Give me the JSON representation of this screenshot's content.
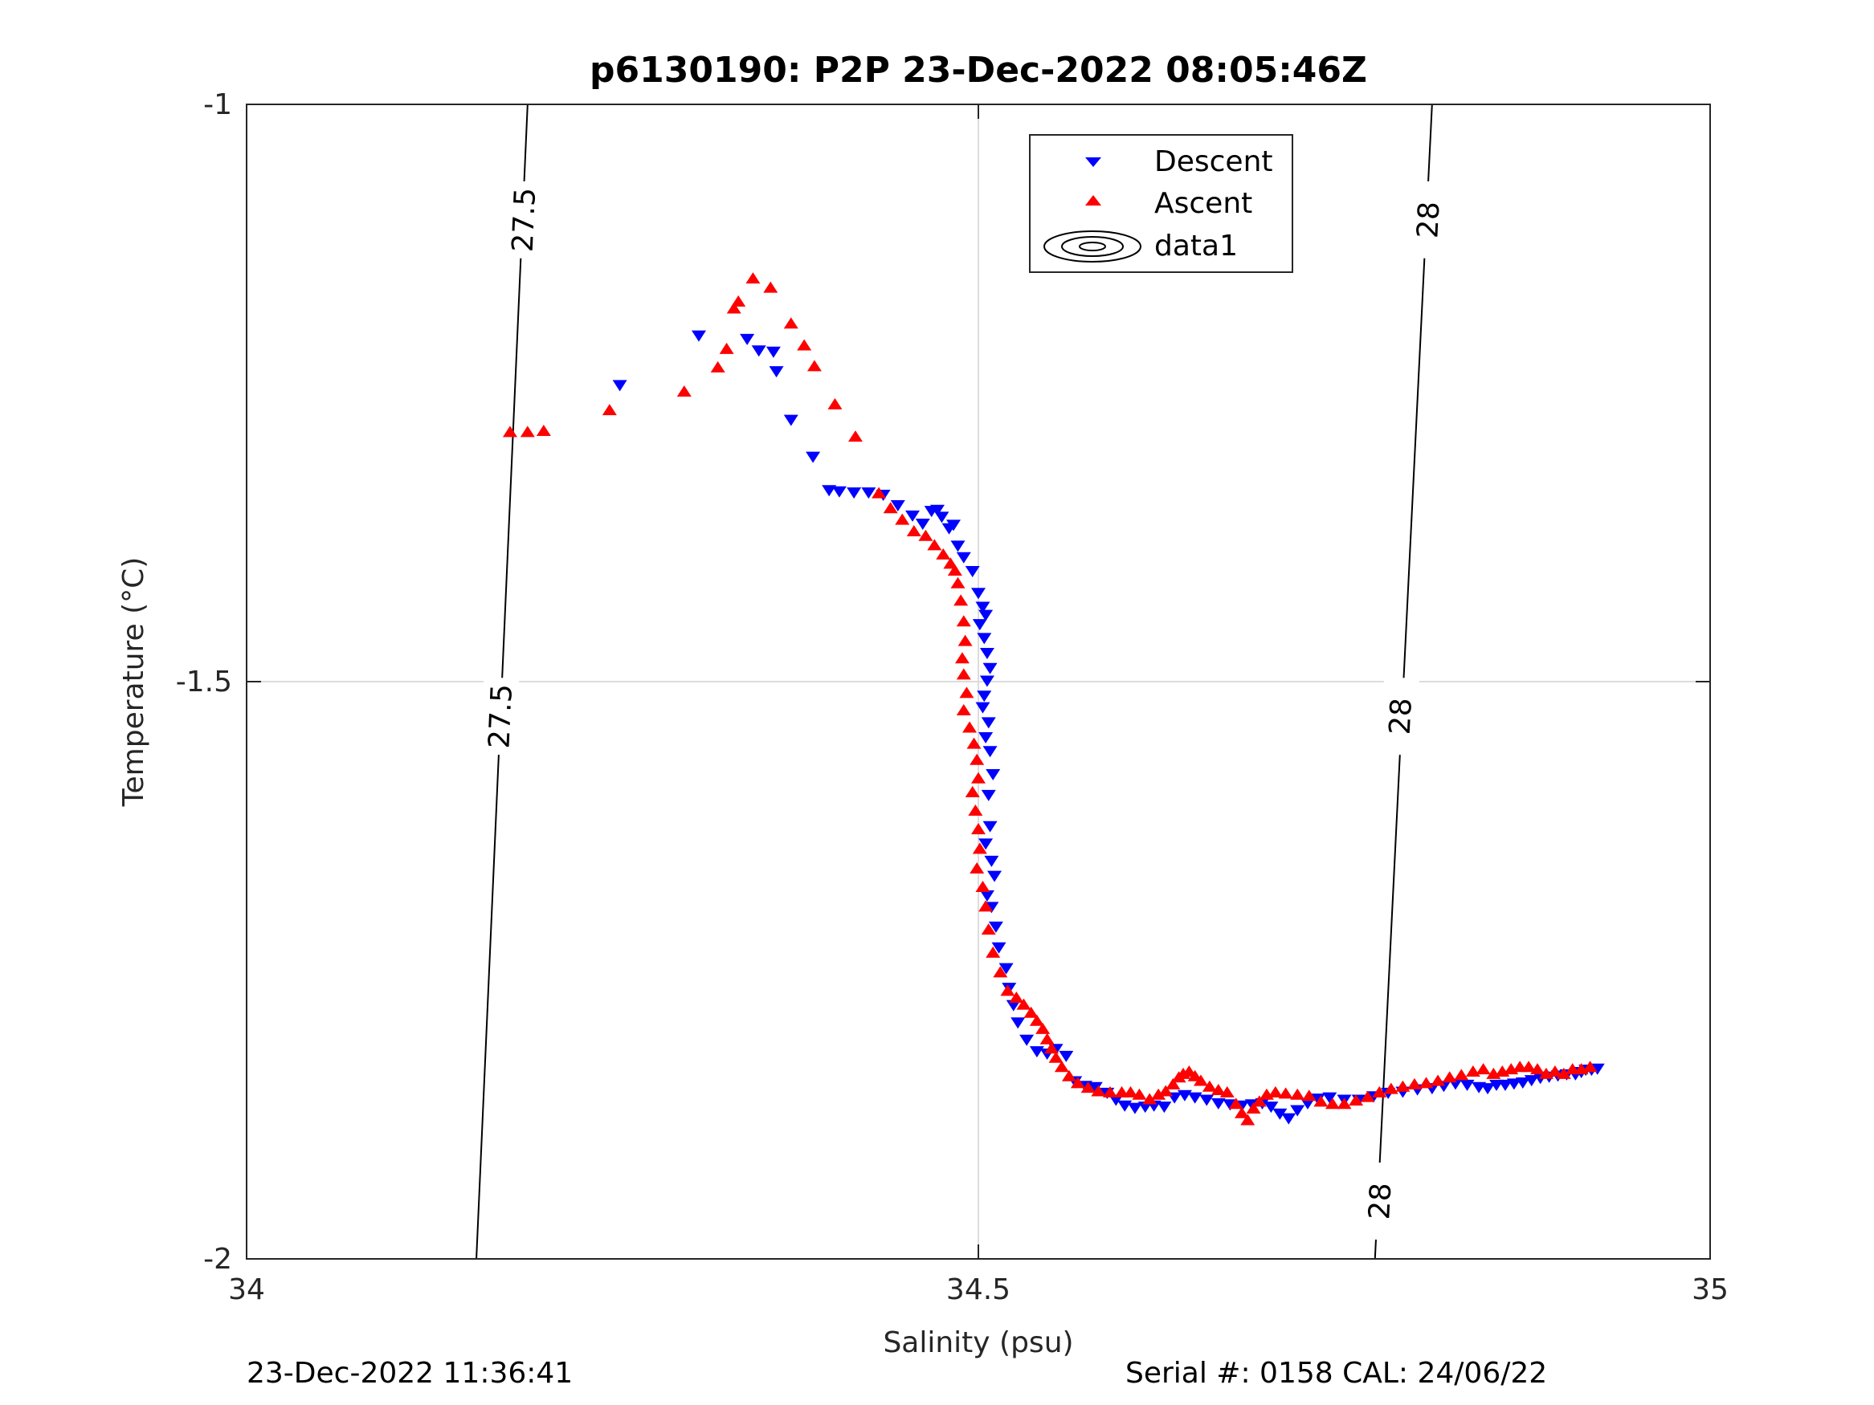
{
  "chart_data": {
    "type": "scatter",
    "title": "p6130190: P2P 23-Dec-2022 08:05:46Z",
    "xlabel": "Salinity (psu)",
    "ylabel": "Temperature (°C)",
    "xlim": [
      34,
      35
    ],
    "ylim": [
      -2,
      -1
    ],
    "xticks": [
      "34",
      "34.5",
      "35"
    ],
    "yticks": [
      "-2",
      "-1.5",
      "-1"
    ],
    "grid": true,
    "legend_position": "top-right",
    "legend": [
      "Descent",
      "Ascent",
      "data1"
    ],
    "series": [
      {
        "name": "Descent",
        "marker": "triangle-down",
        "color": "#0000ff",
        "points": [
          [
            34.255,
            -1.243
          ],
          [
            34.309,
            -1.2
          ],
          [
            34.342,
            -1.203
          ],
          [
            34.35,
            -1.213
          ],
          [
            34.36,
            -1.214
          ],
          [
            34.362,
            -1.231
          ],
          [
            34.372,
            -1.273
          ],
          [
            34.387,
            -1.305
          ],
          [
            34.398,
            -1.334
          ],
          [
            34.405,
            -1.335
          ],
          [
            34.415,
            -1.336
          ],
          [
            34.425,
            -1.336
          ],
          [
            34.435,
            -1.338
          ],
          [
            34.445,
            -1.347
          ],
          [
            34.455,
            -1.356
          ],
          [
            34.462,
            -1.363
          ],
          [
            34.468,
            -1.352
          ],
          [
            34.472,
            -1.351
          ],
          [
            34.475,
            -1.357
          ],
          [
            34.48,
            -1.367
          ],
          [
            34.483,
            -1.364
          ],
          [
            34.486,
            -1.382
          ],
          [
            34.49,
            -1.392
          ],
          [
            34.496,
            -1.404
          ],
          [
            34.5,
            -1.423
          ],
          [
            34.503,
            -1.435
          ],
          [
            34.505,
            -1.442
          ],
          [
            34.501,
            -1.45
          ],
          [
            34.504,
            -1.462
          ],
          [
            34.506,
            -1.475
          ],
          [
            34.508,
            -1.488
          ],
          [
            34.506,
            -1.499
          ],
          [
            34.504,
            -1.512
          ],
          [
            34.503,
            -1.522
          ],
          [
            34.507,
            -1.535
          ],
          [
            34.505,
            -1.548
          ],
          [
            34.508,
            -1.56
          ],
          [
            34.51,
            -1.58
          ],
          [
            34.507,
            -1.598
          ],
          [
            34.508,
            -1.625
          ],
          [
            34.505,
            -1.64
          ],
          [
            34.509,
            -1.655
          ],
          [
            34.511,
            -1.668
          ],
          [
            34.506,
            -1.685
          ],
          [
            34.509,
            -1.695
          ],
          [
            34.512,
            -1.712
          ],
          [
            34.514,
            -1.73
          ],
          [
            34.519,
            -1.748
          ],
          [
            34.521,
            -1.765
          ],
          [
            34.524,
            -1.78
          ],
          [
            34.527,
            -1.795
          ],
          [
            34.533,
            -1.81
          ],
          [
            34.54,
            -1.82
          ],
          [
            34.547,
            -1.822
          ],
          [
            34.553,
            -1.818
          ],
          [
            34.56,
            -1.824
          ],
          [
            34.566,
            -1.846
          ],
          [
            34.573,
            -1.85
          ],
          [
            34.58,
            -1.851
          ],
          [
            34.588,
            -1.856
          ],
          [
            34.594,
            -1.862
          ],
          [
            34.6,
            -1.867
          ],
          [
            34.607,
            -1.869
          ],
          [
            34.614,
            -1.868
          ],
          [
            34.62,
            -1.867
          ],
          [
            34.627,
            -1.868
          ],
          [
            34.634,
            -1.86
          ],
          [
            34.641,
            -1.858
          ],
          [
            34.648,
            -1.86
          ],
          [
            34.656,
            -1.862
          ],
          [
            34.664,
            -1.865
          ],
          [
            34.672,
            -1.866
          ],
          [
            34.68,
            -1.867
          ],
          [
            34.687,
            -1.866
          ],
          [
            34.694,
            -1.865
          ],
          [
            34.7,
            -1.868
          ],
          [
            34.706,
            -1.874
          ],
          [
            34.712,
            -1.878
          ],
          [
            34.718,
            -1.871
          ],
          [
            34.725,
            -1.865
          ],
          [
            34.732,
            -1.861
          ],
          [
            34.74,
            -1.86
          ],
          [
            34.75,
            -1.862
          ],
          [
            34.76,
            -1.862
          ],
          [
            34.77,
            -1.859
          ],
          [
            34.78,
            -1.856
          ],
          [
            34.79,
            -1.855
          ],
          [
            34.8,
            -1.853
          ],
          [
            34.81,
            -1.852
          ],
          [
            34.818,
            -1.85
          ],
          [
            34.826,
            -1.848
          ],
          [
            34.834,
            -1.849
          ],
          [
            34.842,
            -1.851
          ],
          [
            34.848,
            -1.852
          ],
          [
            34.854,
            -1.849
          ],
          [
            34.86,
            -1.849
          ],
          [
            34.866,
            -1.848
          ],
          [
            34.872,
            -1.847
          ],
          [
            34.878,
            -1.845
          ],
          [
            34.884,
            -1.843
          ],
          [
            34.89,
            -1.842
          ],
          [
            34.896,
            -1.841
          ],
          [
            34.902,
            -1.84
          ],
          [
            34.908,
            -1.84
          ],
          [
            34.912,
            -1.838
          ],
          [
            34.915,
            -1.836
          ],
          [
            34.919,
            -1.836
          ],
          [
            34.923,
            -1.835
          ]
        ]
      },
      {
        "name": "Ascent",
        "marker": "triangle-up",
        "color": "#ff0000",
        "points": [
          [
            34.18,
            -1.284
          ],
          [
            34.192,
            -1.284
          ],
          [
            34.203,
            -1.283
          ],
          [
            34.248,
            -1.265
          ],
          [
            34.299,
            -1.249
          ],
          [
            34.322,
            -1.228
          ],
          [
            34.328,
            -1.212
          ],
          [
            34.333,
            -1.177
          ],
          [
            34.336,
            -1.171
          ],
          [
            34.346,
            -1.151
          ],
          [
            34.358,
            -1.159
          ],
          [
            34.372,
            -1.19
          ],
          [
            34.381,
            -1.209
          ],
          [
            34.388,
            -1.227
          ],
          [
            34.402,
            -1.26
          ],
          [
            34.416,
            -1.288
          ],
          [
            34.432,
            -1.337
          ],
          [
            34.44,
            -1.35
          ],
          [
            34.448,
            -1.36
          ],
          [
            34.456,
            -1.37
          ],
          [
            34.464,
            -1.374
          ],
          [
            34.47,
            -1.382
          ],
          [
            34.476,
            -1.39
          ],
          [
            34.481,
            -1.398
          ],
          [
            34.484,
            -1.404
          ],
          [
            34.486,
            -1.415
          ],
          [
            34.488,
            -1.43
          ],
          [
            34.49,
            -1.448
          ],
          [
            34.491,
            -1.465
          ],
          [
            34.489,
            -1.48
          ],
          [
            34.49,
            -1.494
          ],
          [
            34.492,
            -1.51
          ],
          [
            34.49,
            -1.525
          ],
          [
            34.494,
            -1.54
          ],
          [
            34.497,
            -1.554
          ],
          [
            34.499,
            -1.568
          ],
          [
            34.5,
            -1.584
          ],
          [
            34.496,
            -1.596
          ],
          [
            34.498,
            -1.612
          ],
          [
            34.5,
            -1.628
          ],
          [
            34.501,
            -1.645
          ],
          [
            34.499,
            -1.662
          ],
          [
            34.503,
            -1.678
          ],
          [
            34.505,
            -1.695
          ],
          [
            34.507,
            -1.715
          ],
          [
            34.51,
            -1.735
          ],
          [
            34.515,
            -1.752
          ],
          [
            34.52,
            -1.768
          ],
          [
            34.526,
            -1.774
          ],
          [
            34.531,
            -1.78
          ],
          [
            34.536,
            -1.787
          ],
          [
            34.54,
            -1.794
          ],
          [
            34.544,
            -1.801
          ],
          [
            34.547,
            -1.81
          ],
          [
            34.55,
            -1.818
          ],
          [
            34.553,
            -1.826
          ],
          [
            34.557,
            -1.834
          ],
          [
            34.562,
            -1.842
          ],
          [
            34.568,
            -1.848
          ],
          [
            34.575,
            -1.852
          ],
          [
            34.582,
            -1.855
          ],
          [
            34.59,
            -1.856
          ],
          [
            34.598,
            -1.856
          ],
          [
            34.604,
            -1.856
          ],
          [
            34.61,
            -1.858
          ],
          [
            34.617,
            -1.862
          ],
          [
            34.623,
            -1.858
          ],
          [
            34.628,
            -1.855
          ],
          [
            34.633,
            -1.849
          ],
          [
            34.637,
            -1.843
          ],
          [
            34.64,
            -1.84
          ],
          [
            34.644,
            -1.838
          ],
          [
            34.648,
            -1.842
          ],
          [
            34.652,
            -1.846
          ],
          [
            34.658,
            -1.851
          ],
          [
            34.664,
            -1.854
          ],
          [
            34.67,
            -1.856
          ],
          [
            34.676,
            -1.866
          ],
          [
            34.68,
            -1.874
          ],
          [
            34.684,
            -1.88
          ],
          [
            34.688,
            -1.87
          ],
          [
            34.692,
            -1.864
          ],
          [
            34.697,
            -1.858
          ],
          [
            34.703,
            -1.856
          ],
          [
            34.71,
            -1.857
          ],
          [
            34.718,
            -1.858
          ],
          [
            34.726,
            -1.859
          ],
          [
            34.734,
            -1.864
          ],
          [
            34.742,
            -1.866
          ],
          [
            34.75,
            -1.866
          ],
          [
            34.758,
            -1.863
          ],
          [
            34.766,
            -1.86
          ],
          [
            34.774,
            -1.856
          ],
          [
            34.782,
            -1.853
          ],
          [
            34.79,
            -1.851
          ],
          [
            34.798,
            -1.849
          ],
          [
            34.806,
            -1.848
          ],
          [
            34.814,
            -1.846
          ],
          [
            34.822,
            -1.843
          ],
          [
            34.83,
            -1.841
          ],
          [
            34.838,
            -1.838
          ],
          [
            34.845,
            -1.836
          ],
          [
            34.852,
            -1.84
          ],
          [
            34.858,
            -1.838
          ],
          [
            34.864,
            -1.836
          ],
          [
            34.87,
            -1.834
          ],
          [
            34.876,
            -1.834
          ],
          [
            34.882,
            -1.836
          ],
          [
            34.888,
            -1.84
          ],
          [
            34.894,
            -1.838
          ],
          [
            34.9,
            -1.84
          ],
          [
            34.906,
            -1.836
          ],
          [
            34.912,
            -1.836
          ],
          [
            34.918,
            -1.834
          ]
        ]
      }
    ],
    "contours": [
      {
        "label": "27.5",
        "points": [
          [
            34.192,
            -1.0
          ],
          [
            34.157,
            -2.0
          ]
        ],
        "labels_at": [
          [
            34.189,
            -1.1
          ],
          [
            34.173,
            -1.53
          ]
        ]
      },
      {
        "label": "28",
        "points": [
          [
            34.81,
            -1.0
          ],
          [
            34.771,
            -2.0
          ]
        ],
        "labels_at": [
          [
            34.807,
            -1.1
          ],
          [
            34.788,
            -1.53
          ],
          [
            34.774,
            -1.95
          ]
        ]
      }
    ]
  },
  "footer": {
    "timestamp": "23-Dec-2022 11:36:41",
    "serial": "Serial #: 0158  CAL: 24/06/22"
  }
}
